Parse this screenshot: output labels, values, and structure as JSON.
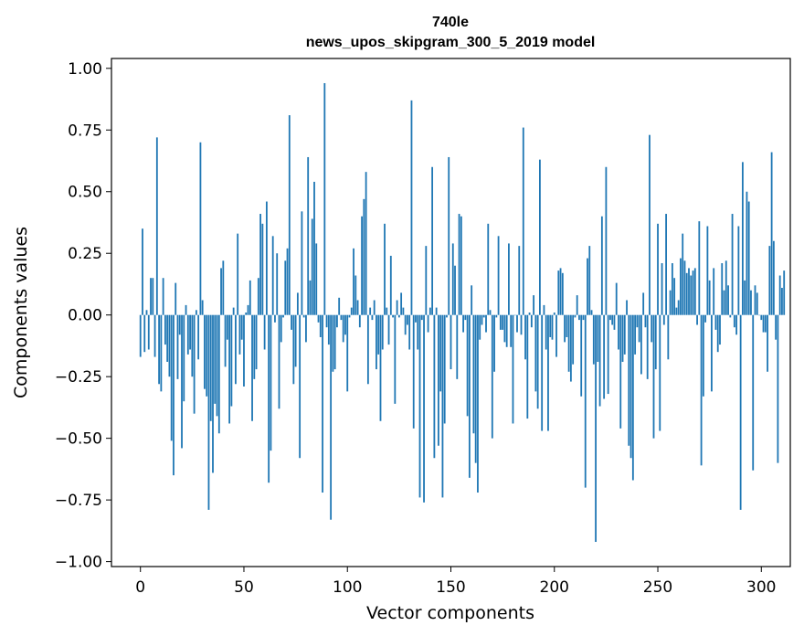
{
  "chart_data": {
    "type": "bar",
    "title_line1": "740le",
    "title_line2": "news_upos_skipgram_300_5_2019 model",
    "xlabel": "Vector components",
    "ylabel": "Components values",
    "xlim": [
      -14,
      314
    ],
    "ylim": [
      -1.02,
      1.04
    ],
    "xticks": [
      0,
      50,
      100,
      150,
      200,
      250,
      300
    ],
    "yticks": [
      1.0,
      0.75,
      0.5,
      0.25,
      0.0,
      -0.25,
      -0.5,
      -0.75,
      -1.0
    ],
    "ytick_labels": [
      "1.00",
      "0.75",
      "0.50",
      "0.25",
      "0.00",
      "−0.25",
      "−0.50",
      "−0.75",
      "−1.00"
    ],
    "bar_color": "#1f77b4",
    "grid": false,
    "values": [
      -0.17,
      0.35,
      -0.15,
      0.02,
      -0.14,
      0.15,
      0.15,
      -0.17,
      0.72,
      -0.28,
      -0.31,
      0.15,
      -0.12,
      -0.19,
      -0.25,
      -0.51,
      -0.65,
      0.13,
      -0.26,
      -0.08,
      -0.54,
      -0.35,
      0.04,
      -0.16,
      -0.14,
      -0.25,
      -0.4,
      0.02,
      -0.18,
      0.7,
      0.06,
      -0.3,
      -0.33,
      -0.79,
      -0.43,
      -0.64,
      -0.36,
      -0.41,
      -0.48,
      0.19,
      0.22,
      -0.21,
      -0.1,
      -0.44,
      -0.37,
      0.03,
      -0.28,
      0.33,
      -0.16,
      -0.1,
      -0.29,
      0.01,
      0.04,
      0.14,
      -0.43,
      -0.26,
      -0.22,
      0.15,
      0.41,
      0.37,
      -0.14,
      0.46,
      -0.68,
      -0.55,
      0.32,
      -0.03,
      0.25,
      -0.38,
      -0.11,
      -0.01,
      0.22,
      0.27,
      0.81,
      -0.06,
      -0.28,
      -0.21,
      0.09,
      -0.58,
      0.42,
      -0.01,
      -0.11,
      0.64,
      0.14,
      0.39,
      0.54,
      0.29,
      -0.03,
      -0.09,
      -0.72,
      0.94,
      -0.05,
      -0.12,
      -0.83,
      -0.23,
      -0.22,
      -0.05,
      0.07,
      -0.02,
      -0.11,
      -0.08,
      -0.31,
      -0.01,
      0.03,
      0.27,
      0.16,
      0.06,
      -0.05,
      0.4,
      0.47,
      0.58,
      -0.28,
      0.03,
      -0.02,
      0.06,
      -0.22,
      -0.16,
      -0.43,
      -0.14,
      0.37,
      0.03,
      -0.12,
      0.24,
      -0.01,
      -0.36,
      0.06,
      -0.01,
      0.09,
      0.03,
      -0.08,
      -0.04,
      -0.14,
      0.87,
      -0.46,
      -0.03,
      -0.14,
      -0.74,
      -0.02,
      -0.76,
      0.28,
      -0.07,
      0.03,
      0.6,
      -0.58,
      0.03,
      -0.53,
      -0.31,
      -0.74,
      -0.44,
      -0.01,
      0.64,
      -0.22,
      0.29,
      0.2,
      -0.26,
      0.41,
      0.4,
      -0.07,
      -0.02,
      -0.41,
      -0.66,
      0.12,
      -0.48,
      -0.6,
      -0.72,
      -0.1,
      -0.04,
      -0.01,
      -0.07,
      0.37,
      0.02,
      -0.5,
      -0.23,
      -0.01,
      0.32,
      -0.06,
      -0.06,
      -0.11,
      -0.13,
      0.29,
      -0.13,
      -0.44,
      0.0,
      -0.07,
      0.28,
      -0.08,
      0.76,
      -0.18,
      -0.42,
      0.01,
      -0.05,
      0.08,
      -0.31,
      -0.38,
      0.63,
      -0.47,
      0.04,
      -0.14,
      -0.47,
      -0.09,
      -0.1,
      0.01,
      -0.17,
      0.18,
      0.19,
      0.17,
      -0.11,
      -0.09,
      -0.23,
      -0.27,
      -0.2,
      -0.01,
      0.08,
      -0.02,
      -0.33,
      -0.02,
      -0.7,
      0.23,
      0.28,
      0.02,
      -0.2,
      -0.92,
      -0.19,
      -0.37,
      0.4,
      -0.34,
      0.6,
      -0.32,
      -0.02,
      -0.04,
      -0.06,
      0.13,
      -0.14,
      -0.46,
      -0.19,
      -0.16,
      0.06,
      -0.53,
      -0.58,
      -0.67,
      -0.16,
      -0.05,
      -0.11,
      -0.24,
      0.09,
      -0.05,
      -0.26,
      0.73,
      -0.11,
      -0.5,
      -0.22,
      0.37,
      -0.47,
      0.21,
      -0.04,
      0.41,
      -0.18,
      0.1,
      0.21,
      0.15,
      0.03,
      0.06,
      0.23,
      0.33,
      0.22,
      0.17,
      0.19,
      0.16,
      0.18,
      0.19,
      -0.04,
      0.38,
      -0.61,
      -0.33,
      -0.03,
      0.36,
      0.14,
      -0.31,
      0.19,
      -0.06,
      -0.15,
      -0.12,
      0.21,
      0.1,
      0.22,
      0.12,
      -0.01,
      0.41,
      -0.05,
      -0.08,
      0.36,
      -0.79,
      0.62,
      0.14,
      0.5,
      0.46,
      0.1,
      -0.63,
      0.12,
      0.09,
      0.0,
      -0.02,
      -0.07,
      -0.07,
      -0.23,
      0.28,
      0.66,
      0.3,
      -0.1,
      -0.6,
      0.16,
      0.11,
      0.18
    ]
  }
}
